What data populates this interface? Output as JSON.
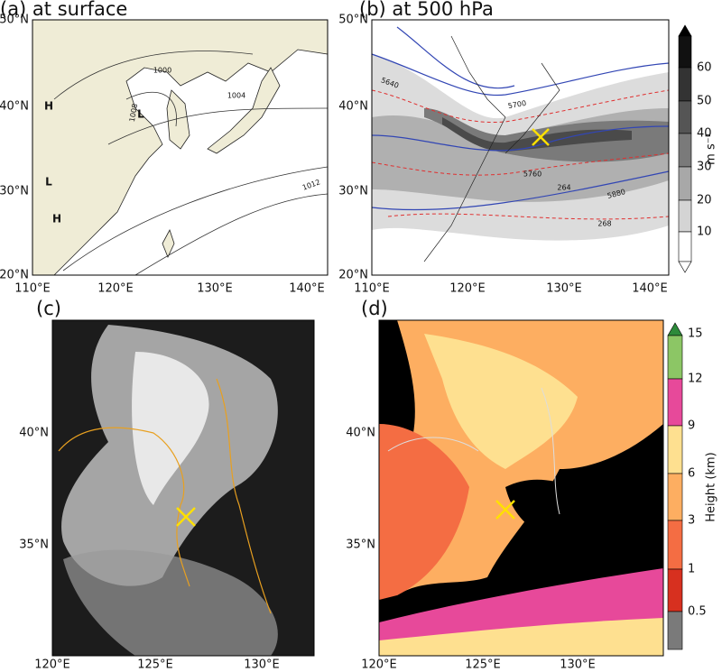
{
  "panels": [
    {
      "label": "(a) at surface",
      "lat_labels": [
        "50°N",
        "40°N",
        "30°N",
        "20°N"
      ],
      "lon_labels": [
        "110°E",
        "120°E",
        "130°E",
        "140°E"
      ],
      "contour_labels": [
        "1000",
        "1004",
        "1008",
        "1012"
      ],
      "pressure_centers": [
        "H",
        "L",
        "L",
        "H"
      ]
    },
    {
      "label": "(b) at 500 hPa",
      "lat_labels": [
        "50°N",
        "40°N",
        "30°N",
        "20°N"
      ],
      "lon_labels": [
        "110°E",
        "120°E",
        "130°E",
        "140°E"
      ],
      "contour_labels": [
        "5640",
        "5700",
        "5760",
        "5880",
        "264",
        "268"
      ],
      "colorbar": {
        "label": "m s⁻¹",
        "ticks": [
          "10",
          "20",
          "30",
          "40",
          "50",
          "60"
        ]
      }
    },
    {
      "label": "(c)",
      "lat_labels": [
        "40°N",
        "35°N"
      ],
      "lon_labels": [
        "120°E",
        "125°E",
        "130°E"
      ]
    },
    {
      "label": "(d)",
      "lat_labels": [
        "40°N",
        "35°N"
      ],
      "lon_labels": [
        "120°E",
        "125°E",
        "130°E"
      ],
      "colorbar": {
        "label": "Height (km)",
        "ticks": [
          "0.5",
          "1",
          "3",
          "6",
          "9",
          "12",
          "15"
        ]
      }
    }
  ]
}
